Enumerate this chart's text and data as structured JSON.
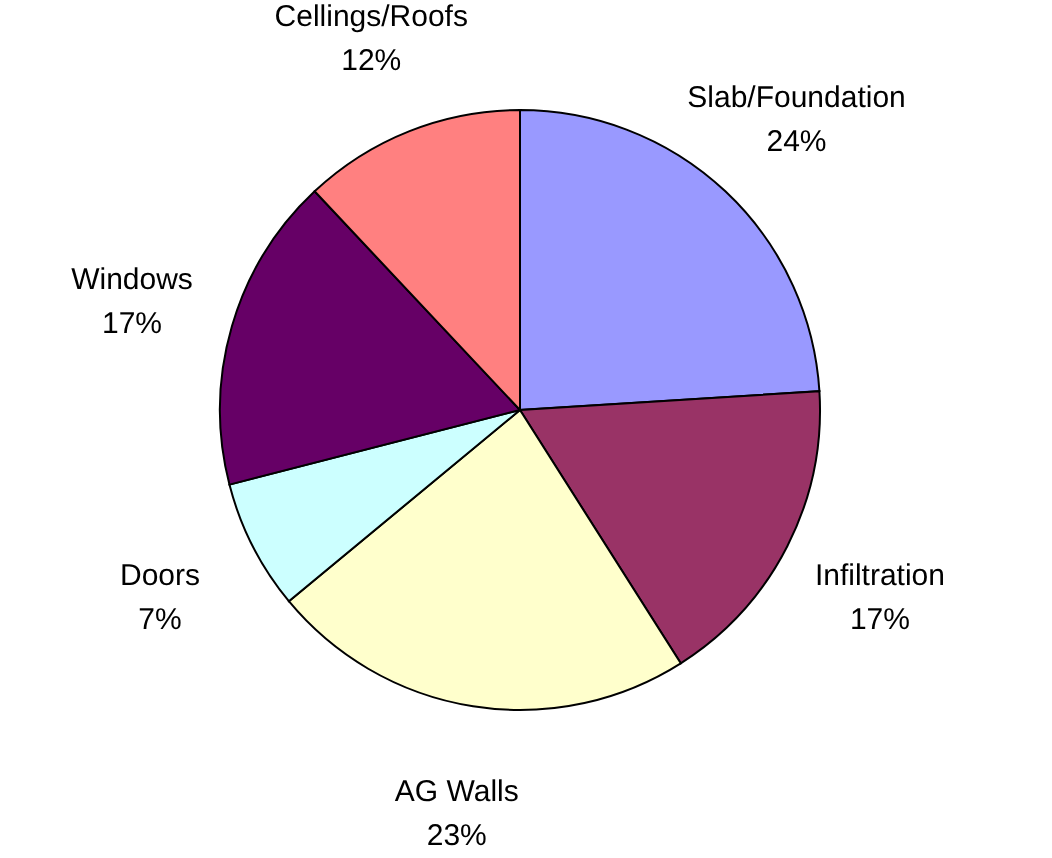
{
  "chart_data": {
    "type": "pie",
    "categories": [
      "Slab/Foundation",
      "Infiltration",
      "AG Walls",
      "Doors",
      "Windows",
      "Cellings/Roofs"
    ],
    "values": [
      24,
      17,
      23,
      7,
      17,
      12
    ],
    "value_labels": [
      "24%",
      "17%",
      "23%",
      "7%",
      "17%",
      "12%"
    ],
    "colors": [
      "#9999ff",
      "#993366",
      "#ffffcc",
      "#ccffff",
      "#660066",
      "#ff8080"
    ]
  }
}
